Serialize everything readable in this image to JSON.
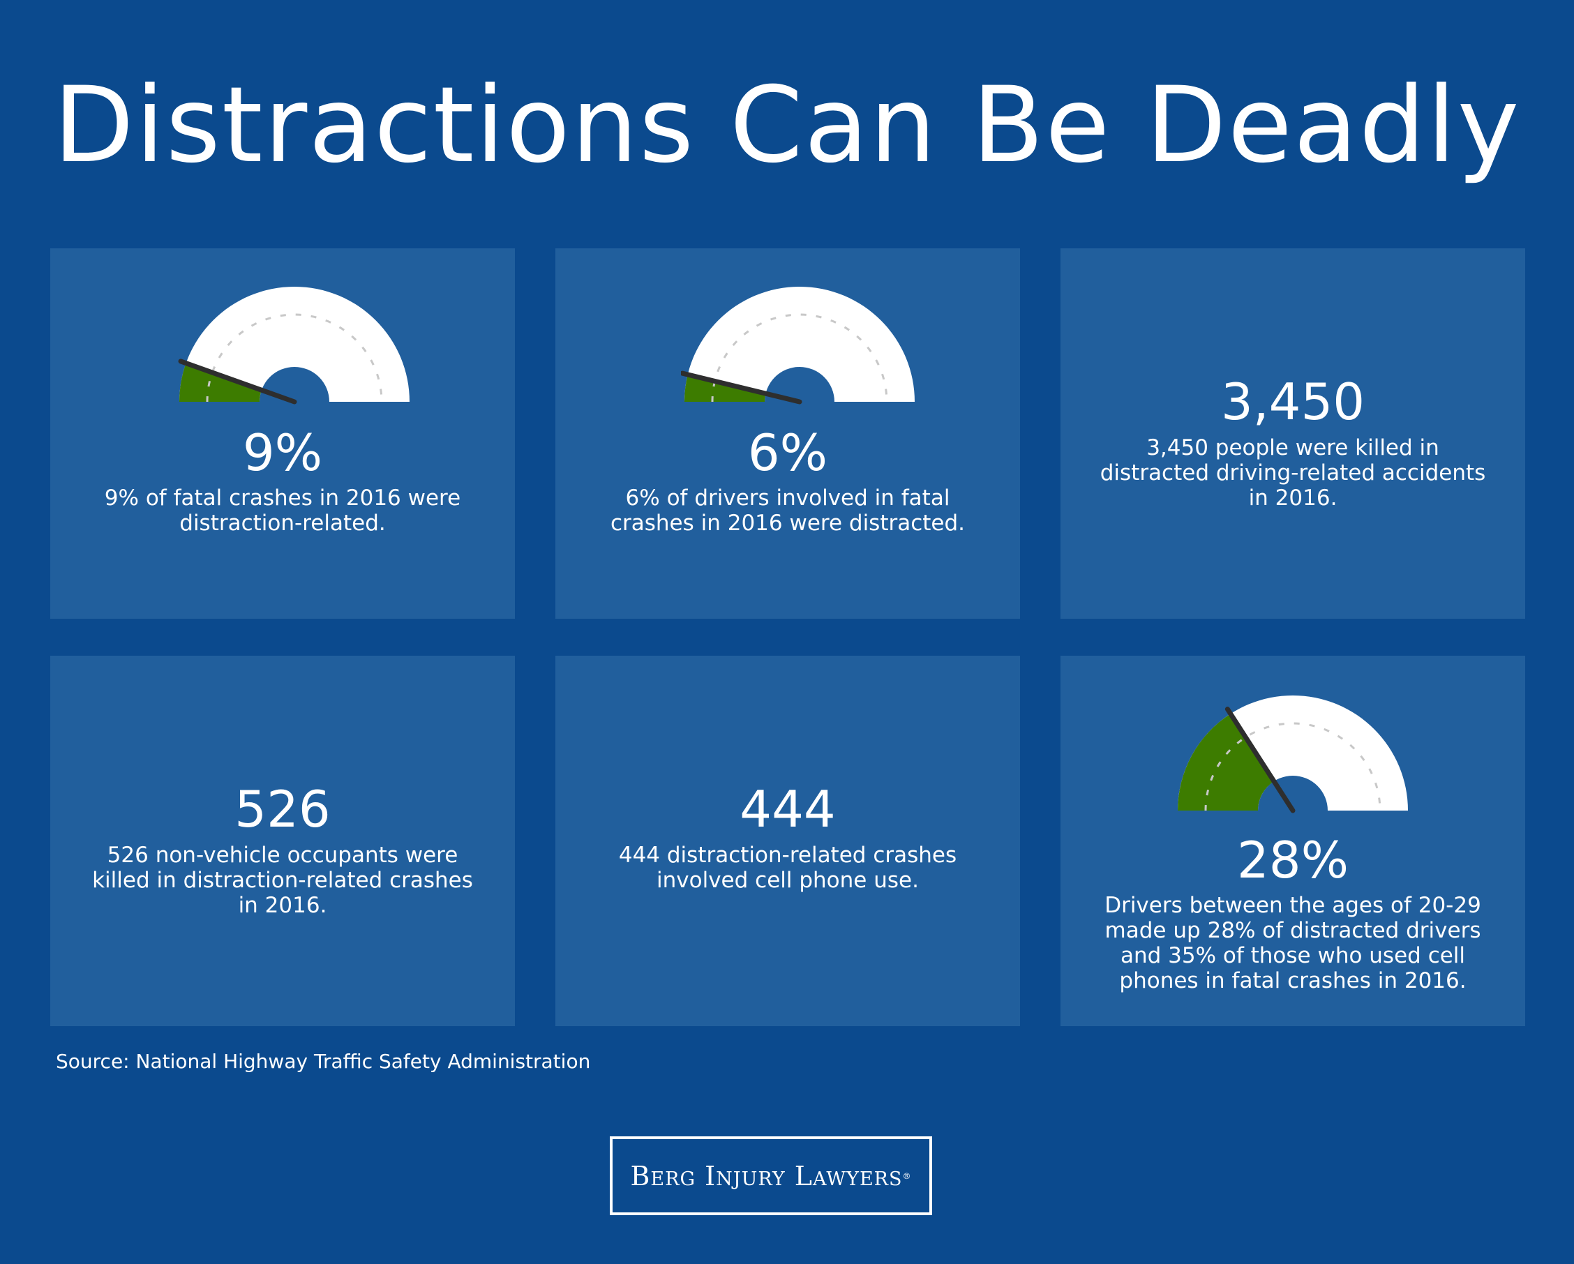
{
  "title": "Distractions Can Be Deadly",
  "colors": {
    "background": "#0b4a8e",
    "card": "#215f9d",
    "gauge_fill": "#3d7c00",
    "gauge_face": "#ffffff",
    "needle": "#2e2e2e"
  },
  "cards": [
    {
      "stat": "9%",
      "description": [
        "9% of fatal crashes in 2016 were",
        "distraction-related."
      ],
      "gauge_percent": 9
    },
    {
      "stat": "6%",
      "description": [
        "6% of drivers involved in fatal",
        "crashes in 2016 were distracted."
      ],
      "gauge_percent": 6
    },
    {
      "stat": "3,450",
      "description": [
        "3,450 people were killed in",
        "distracted driving-related accidents",
        "in 2016."
      ]
    },
    {
      "stat": "526",
      "description": [
        "526 non-vehicle occupants were",
        "killed in distraction-related crashes",
        "in 2016."
      ]
    },
    {
      "stat": "444",
      "description": [
        "444 distraction-related crashes",
        "involved cell phone use."
      ]
    },
    {
      "stat": "28%",
      "description": [
        "Drivers between the ages of 20-29",
        "made up 28% of distracted drivers",
        "and 35% of those who used cell",
        "phones in fatal crashes in 2016."
      ],
      "gauge_percent": 28
    }
  ],
  "source": "Source: National Highway Traffic Safety Administration",
  "logo": {
    "text": "Berg Injury Lawyers",
    "mark": "®"
  }
}
